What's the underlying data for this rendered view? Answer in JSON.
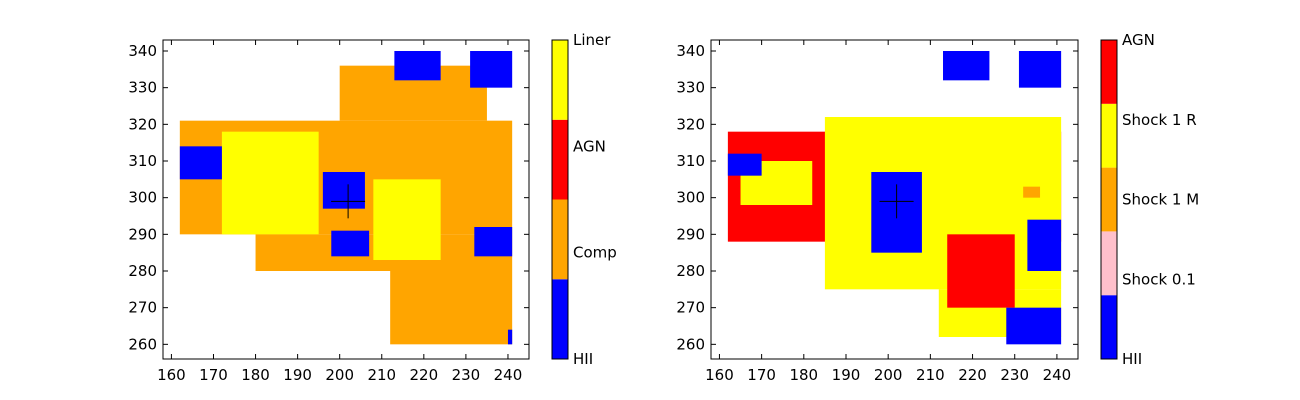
{
  "chart_data": [
    {
      "type": "heatmap",
      "title": "",
      "xlabel": "",
      "ylabel": "",
      "xlim": [
        158,
        245
      ],
      "ylim": [
        256,
        343
      ],
      "xticks": [
        160,
        170,
        180,
        190,
        200,
        210,
        220,
        230,
        240
      ],
      "yticks": [
        260,
        270,
        280,
        290,
        300,
        310,
        320,
        330,
        340
      ],
      "marker": {
        "symbol": "+",
        "x": 202,
        "y": 299
      },
      "colorbar": {
        "categories": [
          {
            "label": "HII",
            "color": "#0000ff"
          },
          {
            "label": "Comp",
            "color": "#ffa500"
          },
          {
            "label": "AGN",
            "color": "#ff0000"
          },
          {
            "label": "Liner",
            "color": "#ffff00"
          }
        ]
      },
      "regions": [
        {
          "class": "Comp",
          "x": [
            162,
            241
          ],
          "y": [
            290,
            321
          ]
        },
        {
          "class": "Comp",
          "x": [
            180,
            241
          ],
          "y": [
            280,
            290
          ]
        },
        {
          "class": "Comp",
          "x": [
            212,
            241
          ],
          "y": [
            260,
            280
          ]
        },
        {
          "class": "Comp",
          "x": [
            200,
            235
          ],
          "y": [
            321,
            336
          ]
        },
        {
          "class": "Liner",
          "x": [
            172,
            195
          ],
          "y": [
            290,
            318
          ]
        },
        {
          "class": "Liner",
          "x": [
            208,
            224
          ],
          "y": [
            283,
            305
          ]
        },
        {
          "class": "HII",
          "x": [
            162,
            172
          ],
          "y": [
            305,
            314
          ]
        },
        {
          "class": "HII",
          "x": [
            196,
            206
          ],
          "y": [
            297,
            307
          ]
        },
        {
          "class": "HII",
          "x": [
            198,
            207
          ],
          "y": [
            284,
            291
          ]
        },
        {
          "class": "HII",
          "x": [
            232,
            241
          ],
          "y": [
            284,
            292
          ]
        },
        {
          "class": "HII",
          "x": [
            213,
            224
          ],
          "y": [
            332,
            340
          ]
        },
        {
          "class": "HII",
          "x": [
            231,
            241
          ],
          "y": [
            330,
            340
          ]
        },
        {
          "class": "HII",
          "x": [
            240,
            241
          ],
          "y": [
            260,
            264
          ]
        }
      ]
    },
    {
      "type": "heatmap",
      "title": "",
      "xlabel": "",
      "ylabel": "",
      "xlim": [
        158,
        245
      ],
      "ylim": [
        256,
        343
      ],
      "xticks": [
        160,
        170,
        180,
        190,
        200,
        210,
        220,
        230,
        240
      ],
      "yticks": [
        260,
        270,
        280,
        290,
        300,
        310,
        320,
        330,
        340
      ],
      "marker": {
        "symbol": "+",
        "x": 202,
        "y": 299
      },
      "colorbar": {
        "categories": [
          {
            "label": "HII",
            "color": "#0000ff"
          },
          {
            "label": "Shock 0.1",
            "color": "#ffc0cb"
          },
          {
            "label": "Shock 1 M",
            "color": "#ffa500"
          },
          {
            "label": "Shock 1 R",
            "color": "#ffff00"
          },
          {
            "label": "AGN",
            "color": "#ff0000"
          }
        ]
      },
      "regions": [
        {
          "class": "AGN",
          "x": [
            162,
            241
          ],
          "y": [
            288,
            318
          ]
        },
        {
          "class": "Shock 1 R",
          "x": [
            185,
            241
          ],
          "y": [
            275,
            322
          ]
        },
        {
          "class": "Shock 1 R",
          "x": [
            212,
            241
          ],
          "y": [
            262,
            275
          ]
        },
        {
          "class": "AGN",
          "x": [
            214,
            230
          ],
          "y": [
            270,
            290
          ]
        },
        {
          "class": "Shock 1 R",
          "x": [
            165,
            182
          ],
          "y": [
            298,
            310
          ]
        },
        {
          "class": "HII",
          "x": [
            196,
            208
          ],
          "y": [
            285,
            307
          ]
        },
        {
          "class": "HII",
          "x": [
            162,
            170
          ],
          "y": [
            306,
            312
          ]
        },
        {
          "class": "HII",
          "x": [
            233,
            241
          ],
          "y": [
            280,
            294
          ]
        },
        {
          "class": "HII",
          "x": [
            228,
            241
          ],
          "y": [
            260,
            270
          ]
        },
        {
          "class": "HII",
          "x": [
            213,
            224
          ],
          "y": [
            332,
            340
          ]
        },
        {
          "class": "HII",
          "x": [
            231,
            241
          ],
          "y": [
            330,
            340
          ]
        },
        {
          "class": "Shock 1 M",
          "x": [
            232,
            236
          ],
          "y": [
            300,
            303
          ]
        }
      ]
    }
  ]
}
